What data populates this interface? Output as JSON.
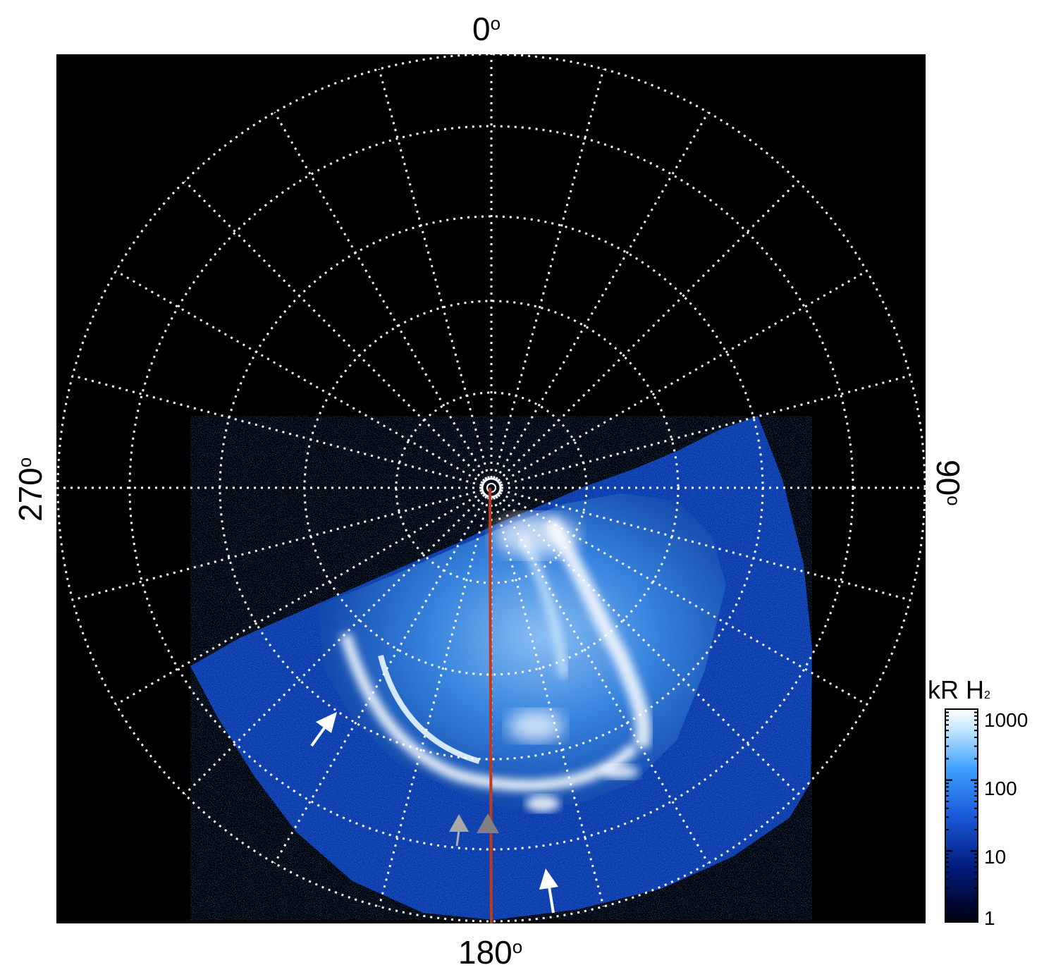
{
  "map": {
    "label_top": "0",
    "label_right": "90",
    "label_bottom": "180",
    "label_left": "270",
    "degree_symbol": "o"
  },
  "colorbar": {
    "title": "kR H",
    "title_subscript": "2",
    "ticks": [
      "1000",
      "100",
      "10",
      "1"
    ],
    "scale": "log",
    "range": [
      1,
      1000
    ]
  },
  "colors": {
    "background": "#000000",
    "grid": "#ffffff",
    "meridian_line": "#c0391b",
    "arrow_white": "#ffffff",
    "arrow_grey": "#a8a8a8",
    "triangle_dark": "#808080"
  }
}
